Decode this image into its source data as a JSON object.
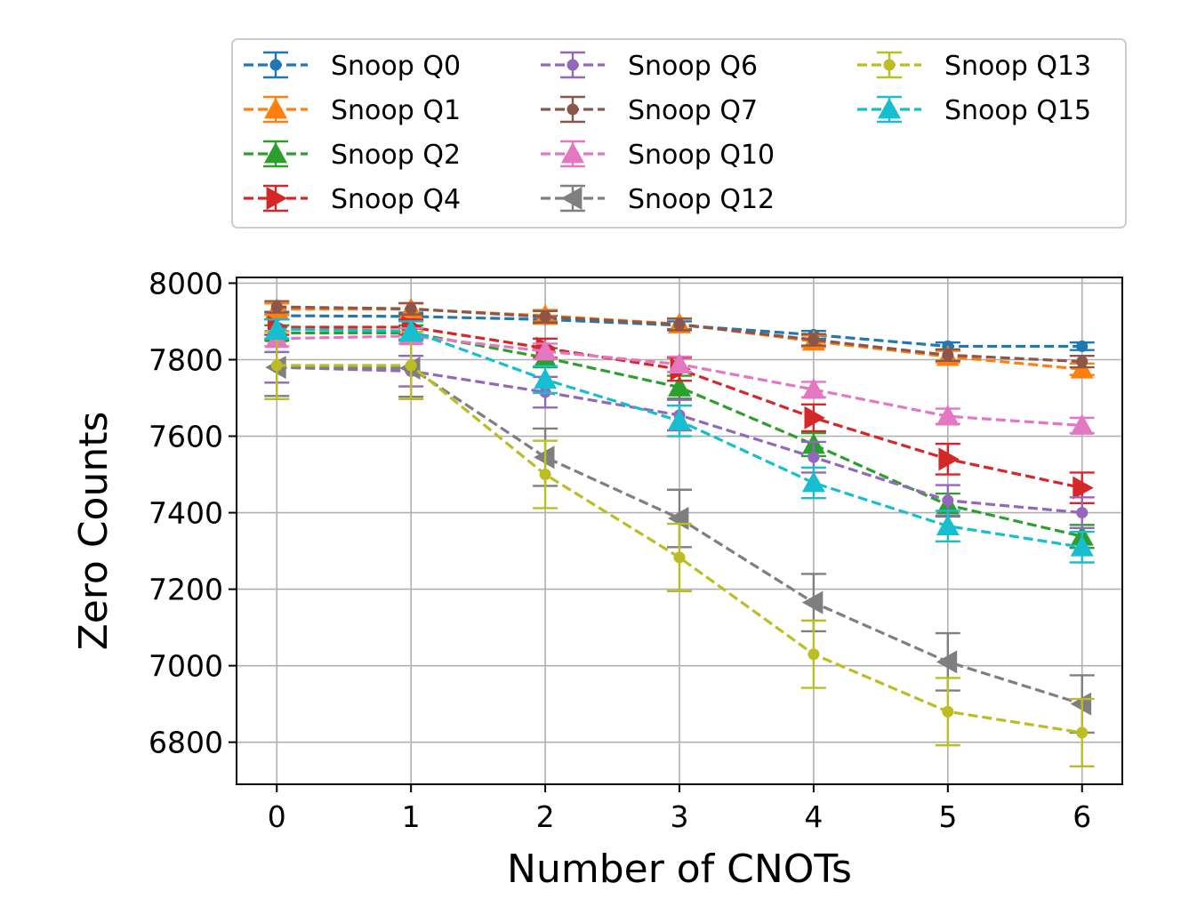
{
  "chart_data": {
    "type": "line",
    "xlabel": "Number of CNOTs",
    "ylabel": "Zero Counts",
    "x": [
      0,
      1,
      2,
      3,
      4,
      5,
      6
    ],
    "xlim": [
      -0.3,
      6.3
    ],
    "ylim": [
      6690,
      8015
    ],
    "xticks": [
      "0",
      "1",
      "2",
      "3",
      "4",
      "5",
      "6"
    ],
    "yticks": [
      6800,
      7000,
      7200,
      7400,
      7600,
      7800,
      8000
    ],
    "grid": true,
    "legend_position": "top, outside plot",
    "series": [
      {
        "name": "Snoop Q0",
        "color": "#1f77b4",
        "marker": "circle",
        "values": [
          7915,
          7913,
          7905,
          7890,
          7865,
          7835,
          7835
        ],
        "errors": [
          10,
          10,
          10,
          10,
          10,
          10,
          10
        ]
      },
      {
        "name": "Snoop Q1",
        "color": "#ff7f0e",
        "marker": "triangle-up",
        "values": [
          7932,
          7932,
          7915,
          7893,
          7848,
          7808,
          7775
        ],
        "errors": [
          15,
          15,
          15,
          15,
          15,
          15,
          15
        ]
      },
      {
        "name": "Snoop Q2",
        "color": "#2ca02c",
        "marker": "triangle-up",
        "values": [
          7870,
          7870,
          7805,
          7728,
          7578,
          7420,
          7338
        ],
        "errors": [
          20,
          20,
          25,
          30,
          30,
          30,
          30
        ]
      },
      {
        "name": "Snoop Q4",
        "color": "#d62728",
        "marker": "triangle-right",
        "values": [
          7885,
          7885,
          7830,
          7775,
          7648,
          7540,
          7465
        ],
        "errors": [
          20,
          20,
          25,
          30,
          35,
          40,
          40
        ]
      },
      {
        "name": "Snoop Q6",
        "color": "#9467bd",
        "marker": "circle",
        "values": [
          7780,
          7770,
          7715,
          7655,
          7545,
          7432,
          7400
        ],
        "errors": [
          40,
          40,
          40,
          40,
          40,
          40,
          40
        ]
      },
      {
        "name": "Snoop Q7",
        "color": "#8c564b",
        "marker": "circle",
        "values": [
          7938,
          7933,
          7912,
          7892,
          7852,
          7812,
          7795
        ],
        "errors": [
          15,
          15,
          15,
          15,
          15,
          15,
          15
        ]
      },
      {
        "name": "Snoop Q10",
        "color": "#e377c2",
        "marker": "triangle-up",
        "values": [
          7855,
          7862,
          7822,
          7788,
          7722,
          7652,
          7628
        ],
        "errors": [
          20,
          20,
          20,
          20,
          20,
          20,
          20
        ]
      },
      {
        "name": "Snoop Q12",
        "color": "#7f7f7f",
        "marker": "triangle-left",
        "values": [
          7780,
          7778,
          7545,
          7385,
          7165,
          7010,
          6900
        ],
        "errors": [
          75,
          75,
          75,
          75,
          75,
          75,
          75
        ]
      },
      {
        "name": "Snoop Q13",
        "color": "#bcbd22",
        "marker": "circle",
        "values": [
          7785,
          7785,
          7500,
          7283,
          7030,
          6880,
          6825
        ],
        "errors": [
          88,
          88,
          88,
          88,
          88,
          88,
          88
        ]
      },
      {
        "name": "Snoop Q15",
        "color": "#17becf",
        "marker": "triangle-up",
        "values": [
          7880,
          7875,
          7748,
          7640,
          7478,
          7365,
          7310
        ],
        "errors": [
          25,
          25,
          35,
          40,
          40,
          40,
          40
        ]
      }
    ]
  }
}
